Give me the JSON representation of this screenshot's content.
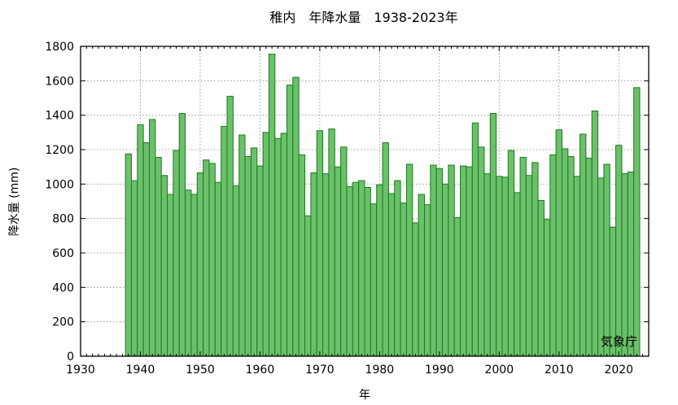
{
  "chart_data": {
    "type": "bar",
    "title": "稚内　年降水量　1938-2023年",
    "xlabel": "年",
    "ylabel": "降水量 (mm)",
    "source": "気象庁",
    "xlim": [
      1930,
      2025
    ],
    "ylim": [
      0,
      1800
    ],
    "x_ticks": [
      1930,
      1940,
      1950,
      1960,
      1970,
      1980,
      1990,
      2000,
      2010,
      2020
    ],
    "y_ticks": [
      0,
      200,
      400,
      600,
      800,
      1000,
      1200,
      1400,
      1600,
      1800
    ],
    "grid": true,
    "bar_color": "#6cc06c",
    "bar_edge_color": "#1a7a1a",
    "x": [
      1938,
      1939,
      1940,
      1941,
      1942,
      1943,
      1944,
      1945,
      1946,
      1947,
      1948,
      1949,
      1950,
      1951,
      1952,
      1953,
      1954,
      1955,
      1956,
      1957,
      1958,
      1959,
      1960,
      1961,
      1962,
      1963,
      1964,
      1965,
      1966,
      1967,
      1968,
      1969,
      1970,
      1971,
      1972,
      1973,
      1974,
      1975,
      1976,
      1977,
      1978,
      1979,
      1980,
      1981,
      1982,
      1983,
      1984,
      1985,
      1986,
      1987,
      1988,
      1989,
      1990,
      1991,
      1992,
      1993,
      1994,
      1995,
      1996,
      1997,
      1998,
      1999,
      2000,
      2001,
      2002,
      2003,
      2004,
      2005,
      2006,
      2007,
      2008,
      2009,
      2010,
      2011,
      2012,
      2013,
      2014,
      2015,
      2016,
      2017,
      2018,
      2019,
      2020,
      2021,
      2022,
      2023
    ],
    "values": [
      1175,
      1020,
      1345,
      1240,
      1375,
      1155,
      1050,
      940,
      1195,
      1410,
      965,
      940,
      1065,
      1140,
      1120,
      1010,
      1335,
      1510,
      990,
      1285,
      1160,
      1210,
      1105,
      1300,
      1755,
      1265,
      1295,
      1575,
      1620,
      1170,
      815,
      1065,
      1310,
      1060,
      1320,
      1100,
      1215,
      985,
      1010,
      1020,
      980,
      885,
      995,
      1240,
      945,
      1020,
      890,
      1115,
      775,
      940,
      880,
      1110,
      1090,
      1000,
      1110,
      805,
      1105,
      1100,
      1355,
      1215,
      1060,
      1410,
      1045,
      1040,
      1195,
      950,
      1155,
      1050,
      1125,
      905,
      795,
      1170,
      1315,
      1205,
      1160,
      1045,
      1290,
      1150,
      1425,
      1035,
      1115,
      750,
      1225,
      1060,
      1070,
      1560
    ]
  }
}
